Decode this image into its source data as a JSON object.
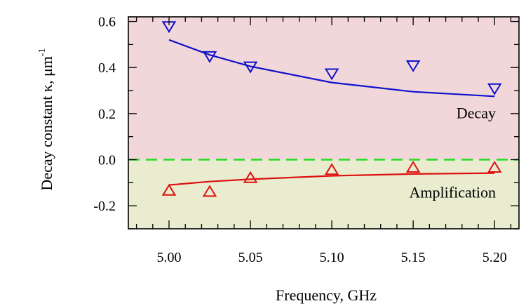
{
  "chart_data": {
    "type": "scatter",
    "xlabel": "Frequency, GHz",
    "ylabel": "Decay constant κ, μm",
    "ylabel_superscript": "-1",
    "xlim": [
      4.975,
      5.215
    ],
    "ylim": [
      -0.3,
      0.62
    ],
    "xticks": [
      5.0,
      5.05,
      5.1,
      5.15,
      5.2
    ],
    "xtick_labels": [
      "5.00",
      "5.05",
      "5.10",
      "5.15",
      "5.20"
    ],
    "yticks": [
      -0.2,
      0.0,
      0.2,
      0.4,
      0.6
    ],
    "ytick_labels": [
      "-0.2",
      "0.0",
      "0.2",
      "0.4",
      "0.6"
    ],
    "regions": [
      {
        "label": "Decay",
        "y_from": 0.0,
        "y_to": 0.62,
        "color": "#f2d7da"
      },
      {
        "label": "Amplification",
        "y_from": -0.3,
        "y_to": 0.0,
        "color": "#e9ecce"
      }
    ],
    "reference_line": {
      "y": 0.0,
      "color": "#22dd22",
      "style": "dashed"
    },
    "series": [
      {
        "marker": "triangle-down",
        "color": "#1111cc",
        "points": [
          [
            5.0,
            0.58
          ],
          [
            5.025,
            0.45
          ],
          [
            5.05,
            0.405
          ],
          [
            5.1,
            0.375
          ],
          [
            5.15,
            0.41
          ],
          [
            5.2,
            0.31
          ]
        ],
        "fit": [
          [
            5.0,
            0.52
          ],
          [
            5.025,
            0.455
          ],
          [
            5.05,
            0.405
          ],
          [
            5.1,
            0.335
          ],
          [
            5.15,
            0.295
          ],
          [
            5.2,
            0.275
          ]
        ]
      },
      {
        "marker": "triangle-up",
        "color": "#dd1111",
        "points": [
          [
            5.0,
            -0.135
          ],
          [
            5.025,
            -0.14
          ],
          [
            5.05,
            -0.08
          ],
          [
            5.1,
            -0.045
          ],
          [
            5.15,
            -0.035
          ],
          [
            5.2,
            -0.035
          ]
        ],
        "fit": [
          [
            5.0,
            -0.11
          ],
          [
            5.025,
            -0.095
          ],
          [
            5.05,
            -0.085
          ],
          [
            5.1,
            -0.07
          ],
          [
            5.15,
            -0.062
          ],
          [
            5.2,
            -0.058
          ]
        ]
      }
    ],
    "annotations": [
      {
        "text": "Decay",
        "x": 5.19,
        "y": 0.18
      },
      {
        "text": "Amplification",
        "x": 5.19,
        "y": -0.165
      }
    ]
  }
}
